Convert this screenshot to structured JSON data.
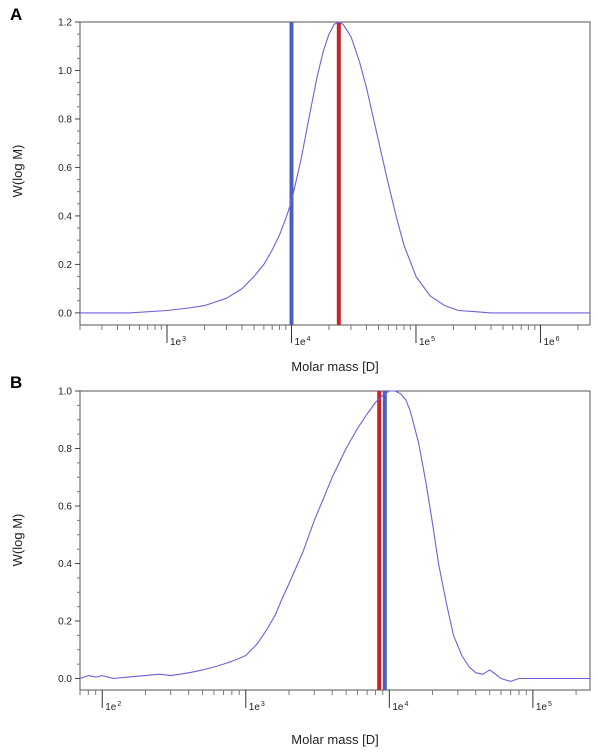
{
  "chart_data": [
    {
      "panel": "A",
      "type": "line",
      "xscale": "log",
      "xlim": [
        200,
        2500000
      ],
      "ylim": [
        -0.05,
        1.2
      ],
      "xlabel": "Molar mass [D]",
      "ylabel": "W(log M)",
      "yticks": [
        "0.0",
        "0.2",
        "0.4",
        "0.6",
        "0.8",
        "1.0",
        "1.2"
      ],
      "xtick_labels": [
        {
          "base": "1e",
          "exp": "3",
          "value": 1000
        },
        {
          "base": "1e",
          "exp": "4",
          "value": 10000
        },
        {
          "base": "1e",
          "exp": "5",
          "value": 100000
        },
        {
          "base": "1e",
          "exp": "6",
          "value": 1000000
        }
      ],
      "series": [
        {
          "color": "#6a62d8",
          "x": [
            200,
            500,
            1000,
            1500,
            2000,
            3000,
            4000,
            5000,
            6000,
            7000,
            8000,
            9000,
            10000,
            12000,
            14000,
            16000,
            18000,
            20000,
            22000,
            24000,
            26000,
            30000,
            35000,
            40000,
            50000,
            60000,
            70000,
            80000,
            100000,
            130000,
            170000,
            220000,
            300000,
            400000,
            600000,
            1000000,
            2500000
          ],
          "y": [
            0.0,
            0.0,
            0.01,
            0.02,
            0.03,
            0.06,
            0.1,
            0.15,
            0.2,
            0.26,
            0.32,
            0.39,
            0.46,
            0.64,
            0.82,
            0.97,
            1.08,
            1.15,
            1.19,
            1.2,
            1.19,
            1.14,
            1.04,
            0.93,
            0.71,
            0.53,
            0.39,
            0.28,
            0.15,
            0.07,
            0.03,
            0.01,
            0.005,
            0.0,
            0.0,
            0.0,
            0.0
          ]
        }
      ],
      "vlines": [
        {
          "x": 10000,
          "color": "#4a5fc0"
        },
        {
          "x": 24000,
          "color": "#c8222a"
        }
      ]
    },
    {
      "panel": "B",
      "type": "line",
      "xscale": "log",
      "xlim": [
        70,
        250000
      ],
      "ylim": [
        -0.04,
        1.0
      ],
      "xlabel": "Molar mass [D]",
      "ylabel": "W(log M)",
      "yticks": [
        "0.0",
        "0.2",
        "0.4",
        "0.6",
        "0.8",
        "1.0"
      ],
      "xtick_labels": [
        {
          "base": "1e",
          "exp": "2",
          "value": 100
        },
        {
          "base": "1e",
          "exp": "3",
          "value": 1000
        },
        {
          "base": "1e",
          "exp": "4",
          "value": 10000
        },
        {
          "base": "1e",
          "exp": "5",
          "value": 100000
        }
      ],
      "series": [
        {
          "color": "#6a62d8",
          "x": [
            70,
            80,
            90,
            100,
            120,
            150,
            200,
            250,
            300,
            400,
            500,
            600,
            700,
            800,
            900,
            1000,
            1200,
            1400,
            1600,
            1800,
            2000,
            2500,
            3000,
            3500,
            4000,
            5000,
            6000,
            7000,
            8000,
            9000,
            10000,
            11000,
            12000,
            13000,
            14000,
            16000,
            18000,
            20000,
            22000,
            25000,
            28000,
            32000,
            36000,
            40000,
            45000,
            50000,
            55000,
            60000,
            70000,
            80000,
            100000,
            250000
          ],
          "y": [
            0.0,
            0.01,
            0.005,
            0.01,
            0.0,
            0.005,
            0.01,
            0.015,
            0.01,
            0.02,
            0.03,
            0.04,
            0.05,
            0.06,
            0.07,
            0.08,
            0.12,
            0.17,
            0.22,
            0.28,
            0.33,
            0.44,
            0.55,
            0.63,
            0.7,
            0.8,
            0.87,
            0.92,
            0.96,
            0.985,
            1.0,
            1.0,
            0.99,
            0.97,
            0.93,
            0.82,
            0.68,
            0.54,
            0.4,
            0.26,
            0.15,
            0.08,
            0.04,
            0.02,
            0.015,
            0.03,
            0.015,
            0.0,
            -0.01,
            0.0,
            0.0,
            0.0
          ]
        }
      ],
      "vlines": [
        {
          "x": 8500,
          "color": "#c8222a"
        },
        {
          "x": 9300,
          "color": "#4a5fc0"
        }
      ]
    }
  ]
}
